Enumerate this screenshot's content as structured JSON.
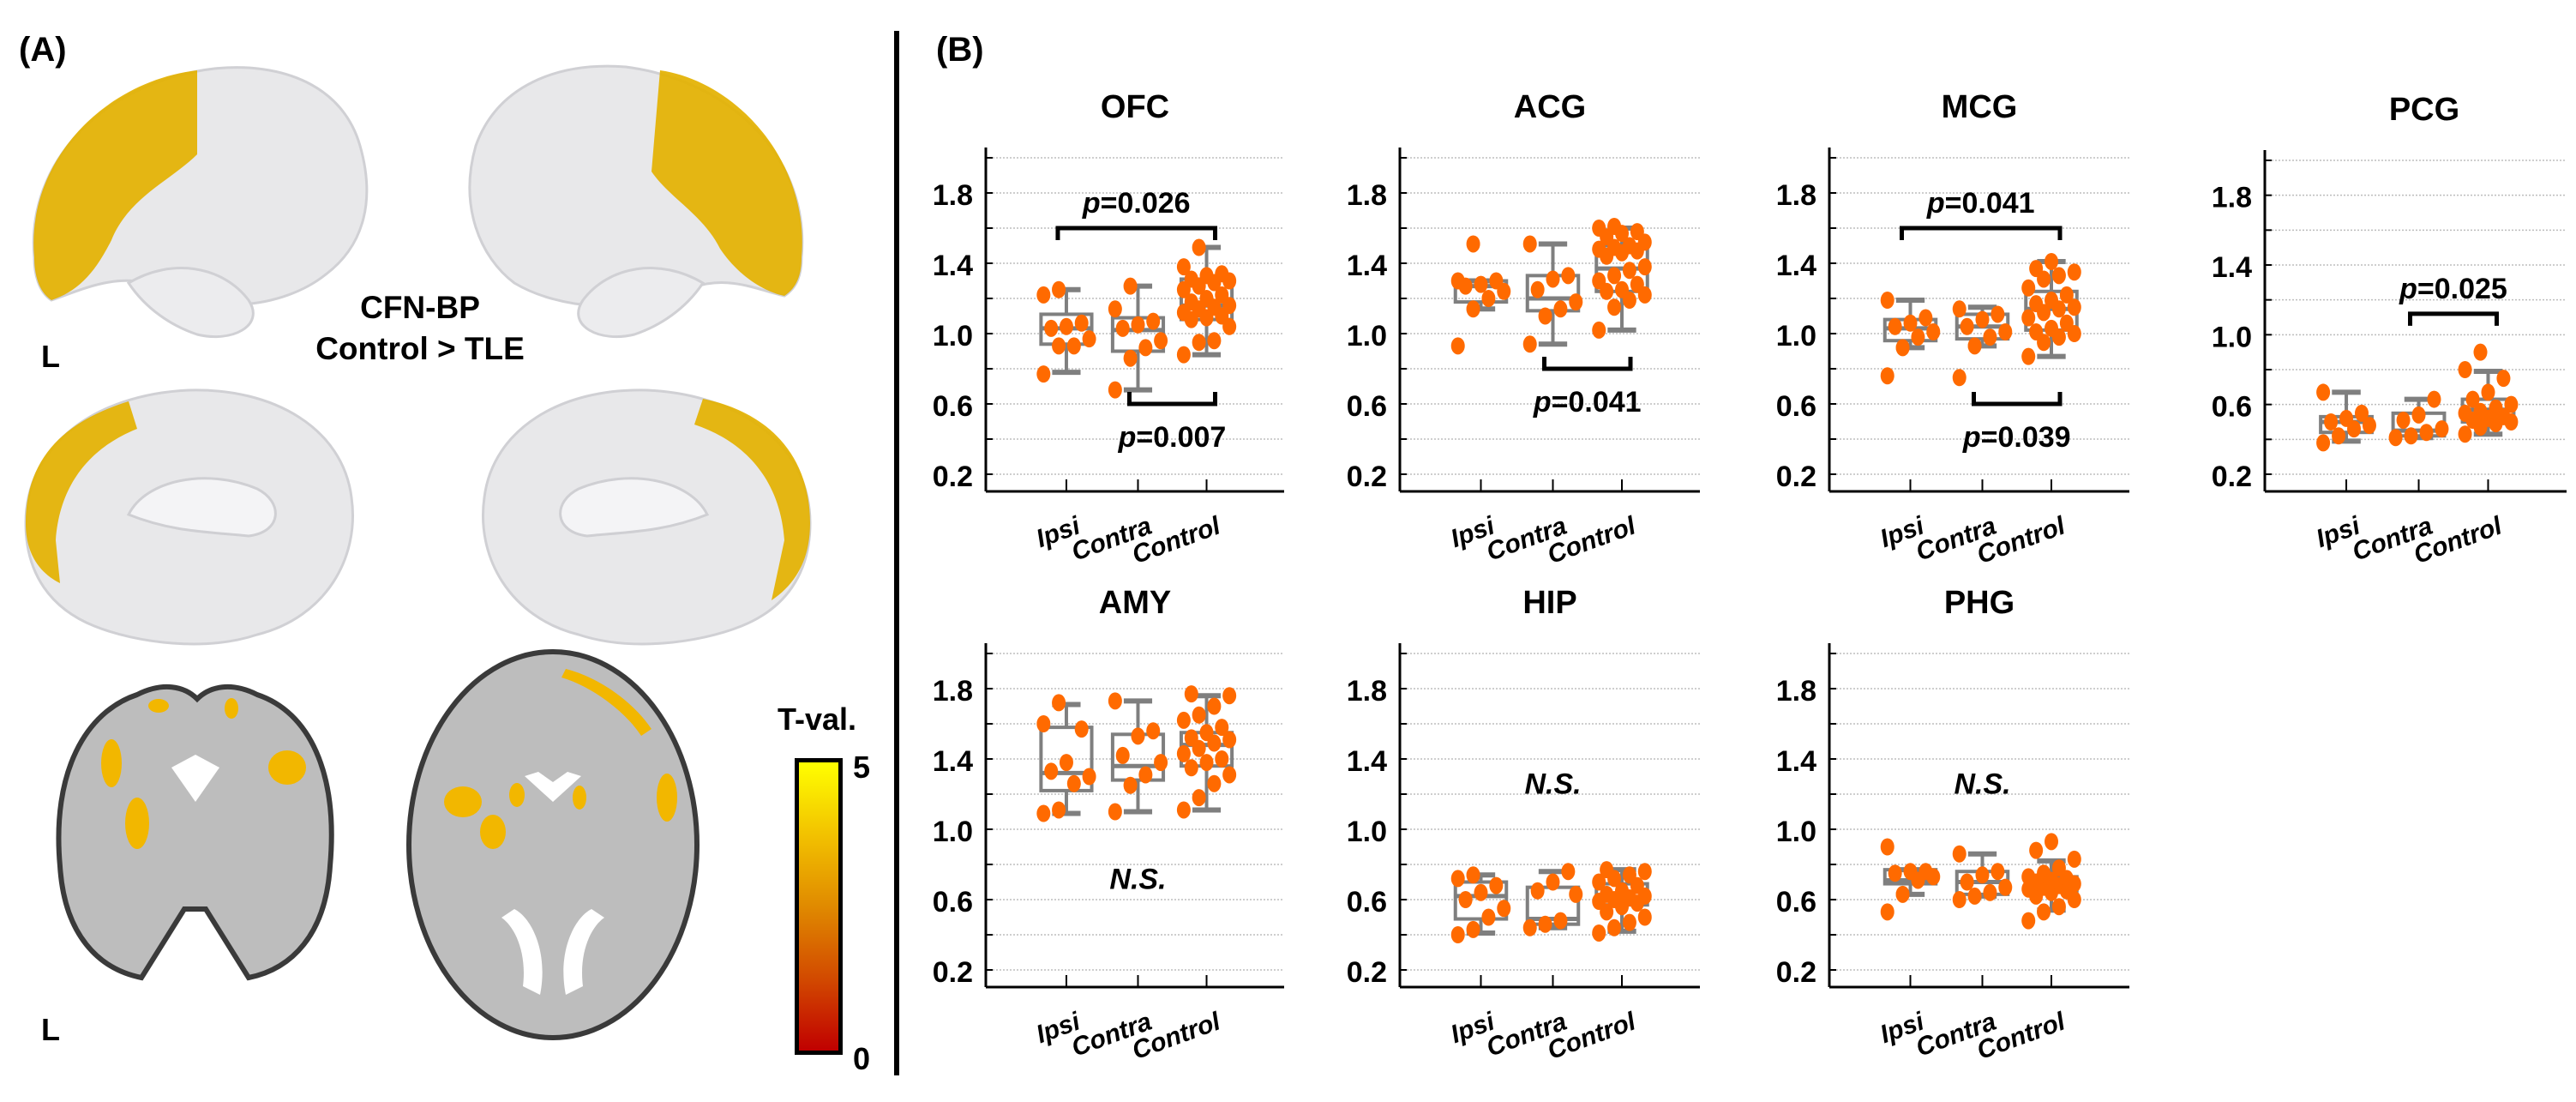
{
  "panelA": {
    "label": "(A)",
    "title_line1": "CFN-BP",
    "title_line2": "Control > TLE",
    "hemisphere_label_top": "L",
    "hemisphere_label_bottom": "L",
    "colorbar": {
      "title": "T-val.",
      "max": "5",
      "min": "0",
      "colors": [
        "#ffff00",
        "#e08a00",
        "#c00000"
      ]
    },
    "overlay_color": "#e3b100"
  },
  "panelB": {
    "label": "(B)"
  },
  "chart_data": [
    {
      "type": "box",
      "title": "OFC",
      "categories": [
        "Ipsi",
        "Contra",
        "Control"
      ],
      "ylim": [
        0.15,
        2.05
      ],
      "yticks": [
        0.2,
        0.6,
        1.0,
        1.4,
        1.8
      ],
      "grid_every": 0.2,
      "grid": true,
      "annotation": "",
      "boxes": [
        {
          "min": 0.78,
          "q1": 0.94,
          "median": 1.03,
          "q3": 1.11,
          "max": 1.25
        },
        {
          "min": 0.68,
          "q1": 0.9,
          "median": 1.02,
          "q3": 1.09,
          "max": 1.27
        },
        {
          "min": 0.88,
          "q1": 1.08,
          "median": 1.16,
          "q3": 1.31,
          "max": 1.49
        }
      ],
      "points": [
        [
          0.77,
          0.93,
          0.93,
          0.97,
          1.03,
          1.04,
          1.06,
          1.22,
          1.25
        ],
        [
          0.68,
          0.86,
          0.92,
          0.96,
          1.03,
          1.05,
          1.07,
          1.14,
          1.27
        ],
        [
          0.88,
          0.95,
          0.96,
          1.04,
          1.08,
          1.09,
          1.1,
          1.12,
          1.14,
          1.15,
          1.16,
          1.18,
          1.2,
          1.22,
          1.25,
          1.27,
          1.29,
          1.3,
          1.31,
          1.33,
          1.34,
          1.38,
          1.49
        ]
      ],
      "comparisons": [
        {
          "groups": [
            0,
            2
          ],
          "label_p": "p",
          "label_value": "=0.026",
          "position": "above",
          "y": 1.6
        },
        {
          "groups": [
            1,
            2
          ],
          "label_p": "p",
          "label_value": "=0.007",
          "position": "below",
          "y": 0.6
        }
      ]
    },
    {
      "type": "box",
      "title": "ACG",
      "categories": [
        "Ipsi",
        "Contra",
        "Control"
      ],
      "ylim": [
        0.15,
        2.05
      ],
      "yticks": [
        0.2,
        0.6,
        1.0,
        1.4,
        1.8
      ],
      "grid_every": 0.2,
      "grid": true,
      "annotation": "",
      "boxes": [
        {
          "min": 1.14,
          "q1": 1.18,
          "median": 1.27,
          "q3": 1.3,
          "max": 1.3
        },
        {
          "min": 0.94,
          "q1": 1.13,
          "median": 1.2,
          "q3": 1.33,
          "max": 1.51
        },
        {
          "min": 1.02,
          "q1": 1.24,
          "median": 1.37,
          "q3": 1.5,
          "max": 1.6
        }
      ],
      "points": [
        [
          0.93,
          1.14,
          1.2,
          1.24,
          1.27,
          1.28,
          1.3,
          1.3,
          1.51
        ],
        [
          0.94,
          1.1,
          1.14,
          1.18,
          1.25,
          1.31,
          1.33,
          1.51
        ],
        [
          1.02,
          1.15,
          1.19,
          1.22,
          1.24,
          1.25,
          1.28,
          1.3,
          1.33,
          1.36,
          1.38,
          1.44,
          1.46,
          1.47,
          1.48,
          1.49,
          1.5,
          1.52,
          1.55,
          1.57,
          1.58,
          1.6,
          1.61
        ]
      ],
      "comparisons": [
        {
          "groups": [
            1,
            2
          ],
          "label_p": "p",
          "label_value": "=0.041",
          "position": "below",
          "y": 0.8
        }
      ]
    },
    {
      "type": "box",
      "title": "MCG",
      "categories": [
        "Ipsi",
        "Contra",
        "Control"
      ],
      "ylim": [
        0.15,
        2.05
      ],
      "yticks": [
        0.2,
        0.6,
        1.0,
        1.4,
        1.8
      ],
      "grid_every": 0.2,
      "grid": true,
      "annotation": "",
      "boxes": [
        {
          "min": 0.92,
          "q1": 0.96,
          "median": 1.03,
          "q3": 1.08,
          "max": 1.19
        },
        {
          "min": 0.93,
          "q1": 0.97,
          "median": 1.04,
          "q3": 1.11,
          "max": 1.15
        },
        {
          "min": 0.87,
          "q1": 1.02,
          "median": 1.14,
          "q3": 1.24,
          "max": 1.41
        }
      ],
      "points": [
        [
          0.76,
          0.92,
          0.98,
          1.01,
          1.04,
          1.06,
          1.09,
          1.19
        ],
        [
          0.75,
          0.93,
          0.98,
          1.01,
          1.04,
          1.08,
          1.11,
          1.14
        ],
        [
          0.87,
          0.95,
          0.98,
          1.0,
          1.01,
          1.03,
          1.06,
          1.09,
          1.12,
          1.14,
          1.15,
          1.17,
          1.19,
          1.22,
          1.26,
          1.31,
          1.33,
          1.35,
          1.37,
          1.41
        ]
      ],
      "comparisons": [
        {
          "groups": [
            0,
            2
          ],
          "label_p": "p",
          "label_value": "=0.041",
          "position": "above",
          "y": 1.6
        },
        {
          "groups": [
            1,
            2
          ],
          "label_p": "p",
          "label_value": "=0.039",
          "position": "below",
          "y": 0.6
        }
      ]
    },
    {
      "type": "box",
      "title": "PCG",
      "categories": [
        "Ipsi",
        "Contra",
        "Control"
      ],
      "ylim": [
        0.15,
        2.05
      ],
      "yticks": [
        0.2,
        0.6,
        1.0,
        1.4,
        1.8
      ],
      "grid_every": 0.2,
      "grid": true,
      "annotation": "",
      "boxes": [
        {
          "min": 0.39,
          "q1": 0.44,
          "median": 0.5,
          "q3": 0.53,
          "max": 0.67
        },
        {
          "min": 0.41,
          "q1": 0.42,
          "median": 0.45,
          "q3": 0.55,
          "max": 0.63
        },
        {
          "min": 0.43,
          "q1": 0.5,
          "median": 0.57,
          "q3": 0.63,
          "max": 0.79
        }
      ],
      "points": [
        [
          0.38,
          0.42,
          0.46,
          0.48,
          0.5,
          0.52,
          0.55,
          0.67
        ],
        [
          0.41,
          0.42,
          0.44,
          0.46,
          0.51,
          0.54,
          0.63
        ],
        [
          0.43,
          0.47,
          0.49,
          0.5,
          0.51,
          0.52,
          0.53,
          0.55,
          0.56,
          0.58,
          0.6,
          0.63,
          0.67,
          0.75,
          0.8,
          0.9
        ]
      ],
      "comparisons": [
        {
          "groups": [
            1,
            2
          ],
          "label_p": "p",
          "label_value": "=0.025",
          "position": "above",
          "y": 1.12
        }
      ]
    },
    {
      "type": "box",
      "title": "AMY",
      "categories": [
        "Ipsi",
        "Contra",
        "Control"
      ],
      "ylim": [
        0.15,
        2.05
      ],
      "yticks": [
        0.2,
        0.6,
        1.0,
        1.4,
        1.8
      ],
      "grid_every": 0.2,
      "grid": true,
      "annotation": "N.S.",
      "annotation_y": 0.72,
      "boxes": [
        {
          "min": 1.09,
          "q1": 1.22,
          "median": 1.32,
          "q3": 1.58,
          "max": 1.71
        },
        {
          "min": 1.1,
          "q1": 1.28,
          "median": 1.36,
          "q3": 1.54,
          "max": 1.73
        },
        {
          "min": 1.11,
          "q1": 1.36,
          "median": 1.48,
          "q3": 1.55,
          "max": 1.76
        }
      ],
      "points": [
        [
          1.09,
          1.11,
          1.26,
          1.3,
          1.33,
          1.38,
          1.57,
          1.6,
          1.72
        ],
        [
          1.1,
          1.25,
          1.31,
          1.38,
          1.42,
          1.53,
          1.56,
          1.73
        ],
        [
          1.11,
          1.18,
          1.26,
          1.31,
          1.35,
          1.38,
          1.4,
          1.43,
          1.46,
          1.49,
          1.51,
          1.52,
          1.55,
          1.58,
          1.62,
          1.65,
          1.7,
          1.76,
          1.77
        ]
      ],
      "comparisons": []
    },
    {
      "type": "box",
      "title": "HIP",
      "categories": [
        "Ipsi",
        "Contra",
        "Control"
      ],
      "ylim": [
        0.15,
        2.05
      ],
      "yticks": [
        0.2,
        0.6,
        1.0,
        1.4,
        1.8
      ],
      "grid_every": 0.2,
      "grid": true,
      "annotation": "N.S.",
      "annotation_y": 1.26,
      "boxes": [
        {
          "min": 0.41,
          "q1": 0.49,
          "median": 0.62,
          "q3": 0.7,
          "max": 0.74
        },
        {
          "min": 0.44,
          "q1": 0.46,
          "median": 0.49,
          "q3": 0.67,
          "max": 0.76
        },
        {
          "min": 0.42,
          "q1": 0.57,
          "median": 0.61,
          "q3": 0.69,
          "max": 0.77
        }
      ],
      "points": [
        [
          0.4,
          0.43,
          0.5,
          0.55,
          0.6,
          0.64,
          0.68,
          0.72,
          0.74
        ],
        [
          0.44,
          0.46,
          0.48,
          0.63,
          0.65,
          0.7,
          0.76
        ],
        [
          0.41,
          0.44,
          0.47,
          0.5,
          0.53,
          0.56,
          0.58,
          0.59,
          0.6,
          0.61,
          0.62,
          0.63,
          0.65,
          0.68,
          0.7,
          0.72,
          0.74,
          0.76,
          0.77
        ]
      ],
      "comparisons": []
    },
    {
      "type": "box",
      "title": "PHG",
      "categories": [
        "Ipsi",
        "Contra",
        "Control"
      ],
      "ylim": [
        0.15,
        2.05
      ],
      "yticks": [
        0.2,
        0.6,
        1.0,
        1.4,
        1.8
      ],
      "grid_every": 0.2,
      "grid": true,
      "annotation": "N.S.",
      "annotation_y": 1.26,
      "boxes": [
        {
          "min": 0.63,
          "q1": 0.69,
          "median": 0.71,
          "q3": 0.77,
          "max": 0.77
        },
        {
          "min": 0.62,
          "q1": 0.63,
          "median": 0.7,
          "q3": 0.76,
          "max": 0.86
        },
        {
          "min": 0.54,
          "q1": 0.65,
          "median": 0.67,
          "q3": 0.73,
          "max": 0.82
        }
      ],
      "points": [
        [
          0.53,
          0.63,
          0.71,
          0.73,
          0.75,
          0.76,
          0.76,
          0.9
        ],
        [
          0.6,
          0.62,
          0.64,
          0.67,
          0.7,
          0.74,
          0.76,
          0.86
        ],
        [
          0.48,
          0.53,
          0.56,
          0.6,
          0.62,
          0.64,
          0.65,
          0.66,
          0.67,
          0.68,
          0.69,
          0.7,
          0.71,
          0.72,
          0.73,
          0.75,
          0.78,
          0.83,
          0.88,
          0.93
        ]
      ],
      "comparisons": []
    }
  ],
  "style": {
    "point_color": "#ff6a00",
    "box_color": "#7f7f7f",
    "grid_color": "#bdbdbd",
    "axis_color": "#000000"
  }
}
